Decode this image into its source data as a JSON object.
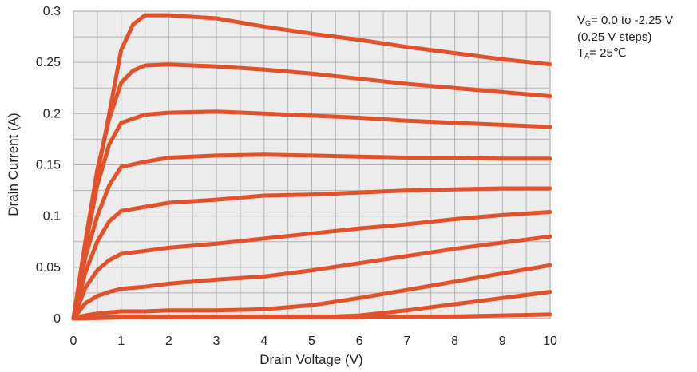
{
  "chart_data": {
    "type": "line",
    "title": "",
    "xlabel": "Drain Voltage (V)",
    "ylabel": "Drain Current  (A)",
    "xlim": [
      0,
      10
    ],
    "ylim": [
      0,
      0.3
    ],
    "xticks": [
      "0",
      "1",
      "2",
      "3",
      "4",
      "5",
      "6",
      "7",
      "8",
      "9",
      "10"
    ],
    "yticks": [
      "0",
      "0.05",
      "0.1",
      "0.15",
      "0.2",
      "0.25",
      "0.3"
    ],
    "grid": true,
    "legend": "none",
    "line_color": "#e2522a",
    "series": [
      {
        "x": [
          0,
          0.25,
          0.5,
          0.75,
          1,
          1.25,
          1.5,
          2,
          3,
          4,
          5,
          6,
          7,
          8,
          9,
          10
        ],
        "y": [
          0,
          0.07,
          0.14,
          0.2,
          0.262,
          0.287,
          0.296,
          0.296,
          0.293,
          0.285,
          0.278,
          0.272,
          0.265,
          0.259,
          0.253,
          0.248
        ]
      },
      {
        "x": [
          0,
          0.25,
          0.5,
          0.75,
          1,
          1.25,
          1.5,
          2,
          3,
          4,
          5,
          6,
          7,
          8,
          9,
          10
        ],
        "y": [
          0,
          0.075,
          0.145,
          0.195,
          0.23,
          0.242,
          0.247,
          0.248,
          0.246,
          0.243,
          0.239,
          0.234,
          0.229,
          0.225,
          0.221,
          0.217
        ]
      },
      {
        "x": [
          0,
          0.25,
          0.5,
          0.75,
          1,
          1.5,
          2,
          3,
          4,
          5,
          6,
          7,
          8,
          9,
          10
        ],
        "y": [
          0,
          0.07,
          0.13,
          0.17,
          0.191,
          0.199,
          0.201,
          0.202,
          0.2,
          0.198,
          0.196,
          0.193,
          0.191,
          0.189,
          0.187
        ]
      },
      {
        "x": [
          0,
          0.25,
          0.5,
          0.75,
          1,
          1.5,
          2,
          3,
          4,
          5,
          6,
          7,
          8,
          9,
          10
        ],
        "y": [
          0,
          0.06,
          0.1,
          0.13,
          0.148,
          0.153,
          0.157,
          0.159,
          0.16,
          0.159,
          0.158,
          0.157,
          0.157,
          0.156,
          0.156
        ]
      },
      {
        "x": [
          0,
          0.25,
          0.5,
          0.75,
          1,
          1.5,
          2,
          3,
          4,
          5,
          6,
          7,
          8,
          9,
          10
        ],
        "y": [
          0,
          0.045,
          0.075,
          0.095,
          0.105,
          0.109,
          0.113,
          0.116,
          0.12,
          0.121,
          0.123,
          0.125,
          0.126,
          0.127,
          0.127
        ]
      },
      {
        "x": [
          0,
          0.25,
          0.5,
          0.75,
          1,
          1.5,
          2,
          3,
          4,
          5,
          6,
          7,
          8,
          9,
          10
        ],
        "y": [
          0,
          0.03,
          0.047,
          0.057,
          0.063,
          0.066,
          0.069,
          0.073,
          0.078,
          0.083,
          0.088,
          0.092,
          0.097,
          0.101,
          0.104
        ]
      },
      {
        "x": [
          0,
          0.25,
          0.5,
          0.75,
          1,
          1.5,
          2,
          3,
          4,
          5,
          6,
          7,
          8,
          9,
          10
        ],
        "y": [
          0,
          0.015,
          0.022,
          0.026,
          0.029,
          0.031,
          0.034,
          0.038,
          0.041,
          0.047,
          0.054,
          0.061,
          0.068,
          0.074,
          0.08
        ]
      },
      {
        "x": [
          0,
          0.25,
          0.5,
          0.75,
          1,
          1.5,
          2,
          3,
          4,
          5,
          6,
          7,
          8,
          9,
          10
        ],
        "y": [
          0,
          0.003,
          0.005,
          0.006,
          0.007,
          0.007,
          0.008,
          0.008,
          0.009,
          0.013,
          0.02,
          0.028,
          0.036,
          0.044,
          0.052
        ]
      },
      {
        "x": [
          0,
          0.5,
          1,
          2,
          3,
          4,
          5,
          5.5,
          6,
          7,
          8,
          8.5,
          9,
          10
        ],
        "y": [
          0,
          0.001,
          0.002,
          0.002,
          0.002,
          0.002,
          0.002,
          0.002,
          0.003,
          0.008,
          0.014,
          0.017,
          0.02,
          0.026
        ]
      },
      {
        "x": [
          0,
          1,
          2,
          3,
          4,
          5,
          6,
          7,
          8,
          9,
          10
        ],
        "y": [
          0,
          0.001,
          0.001,
          0.001,
          0.001,
          0.001,
          0.001,
          0.002,
          0.002,
          0.003,
          0.004
        ]
      }
    ]
  },
  "annotation": {
    "line1_prefix": "V",
    "line1_sub": "G",
    "line1_rest": "= 0.0 to -2.25 V",
    "line2": "(0.25 V steps)",
    "line3_prefix": "T",
    "line3_sub": "A",
    "line3_rest": "= 25℃"
  }
}
